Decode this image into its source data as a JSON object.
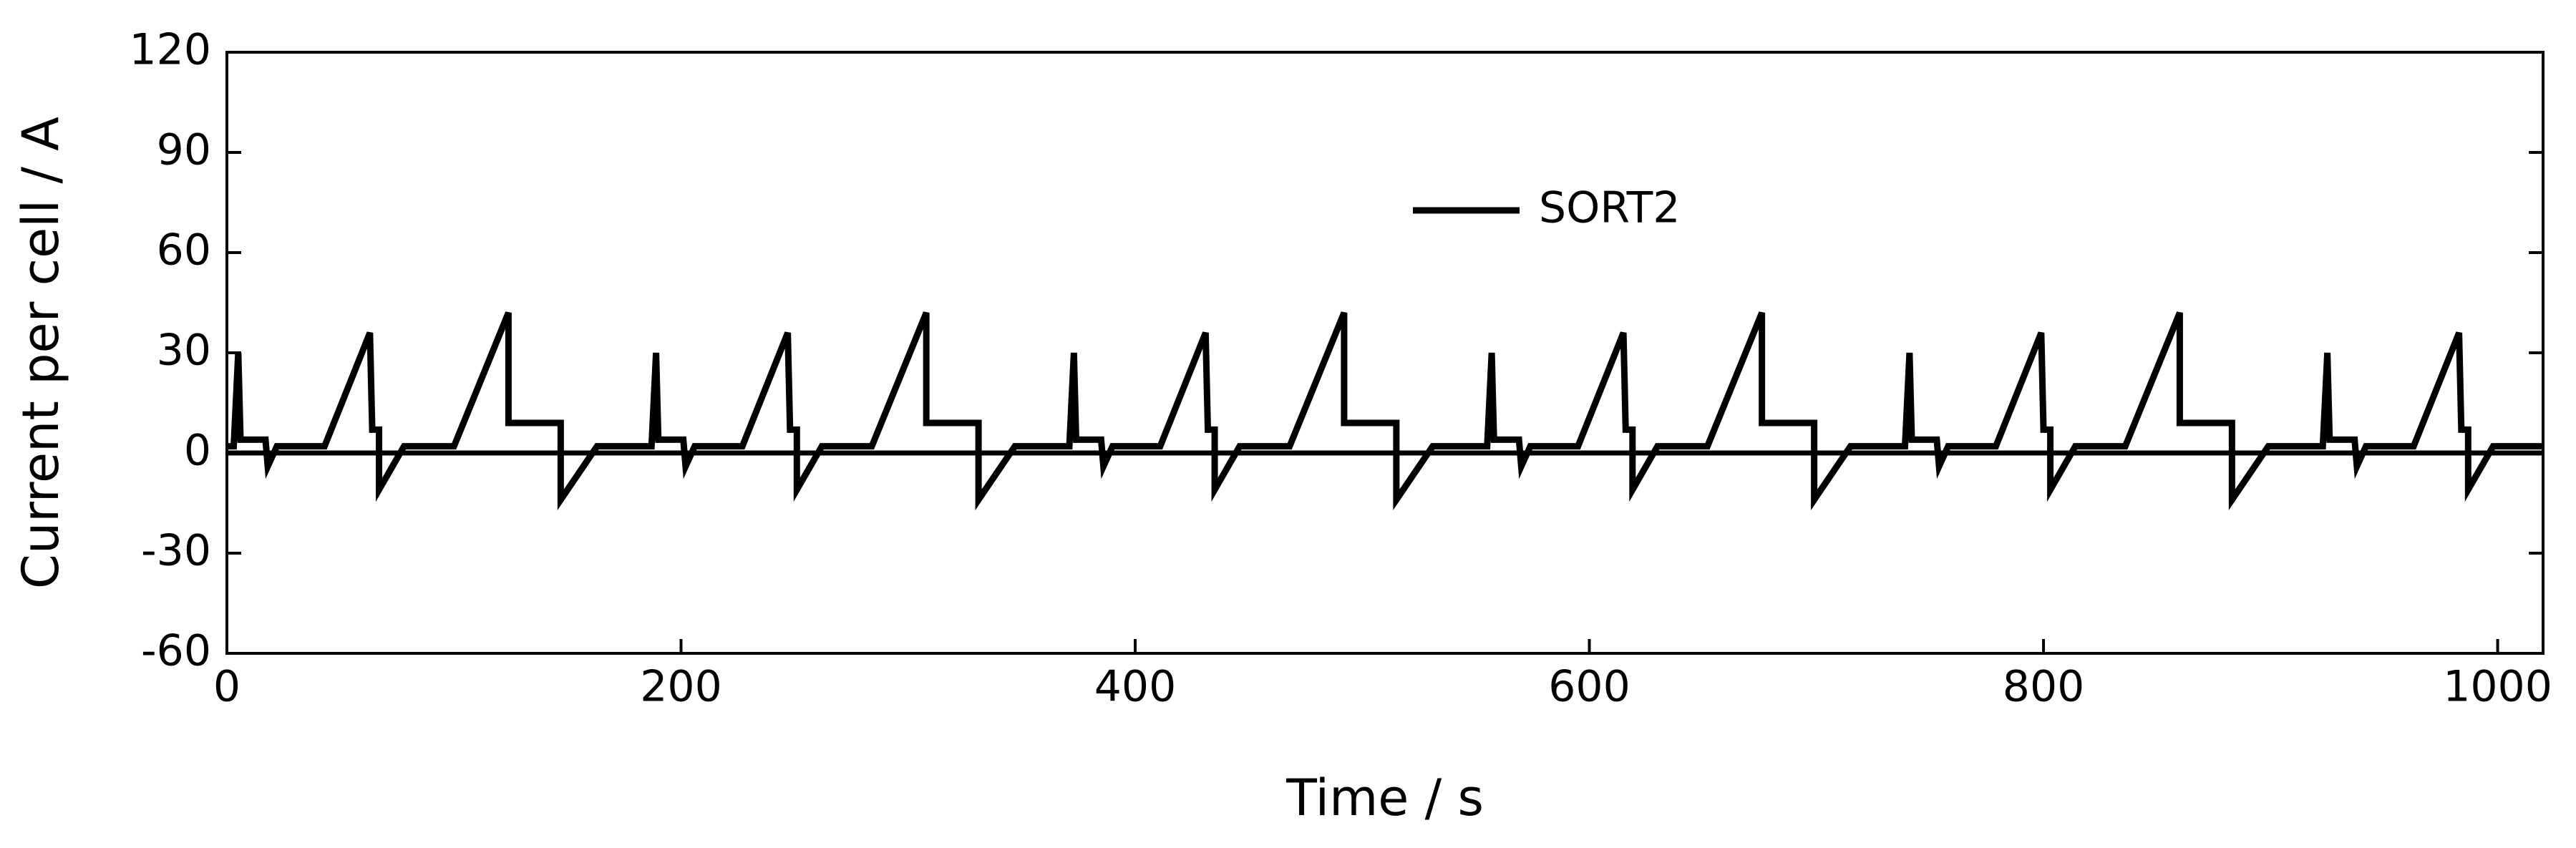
{
  "chart_data": {
    "type": "line",
    "xlabel": "Time / s",
    "ylabel": "Current per cell / A",
    "xlim": [
      0,
      1020
    ],
    "ylim": [
      -60,
      120
    ],
    "xticks": [
      0,
      200,
      400,
      600,
      800,
      1000
    ],
    "yticks": [
      -60,
      -30,
      0,
      30,
      60,
      90,
      120
    ],
    "legend": "top",
    "series": [
      {
        "name": "SORT2",
        "color": "#000000",
        "x": [
          0,
          3,
          5,
          6,
          17,
          18,
          22,
          43,
          63,
          64,
          67,
          67,
          78,
          100,
          124,
          124,
          147,
          147,
          163,
          187,
          189,
          190,
          201,
          202,
          206,
          227,
          247,
          248,
          251,
          251,
          262,
          284,
          308,
          308,
          331,
          331,
          347,
          371,
          373,
          374,
          385,
          386,
          390,
          411,
          431,
          432,
          435,
          435,
          446,
          468,
          492,
          492,
          515,
          515,
          531,
          555,
          557,
          558,
          569,
          570,
          574,
          595,
          615,
          616,
          619,
          619,
          630,
          652,
          676,
          676,
          699,
          699,
          715,
          739,
          741,
          742,
          753,
          754,
          758,
          779,
          799,
          800,
          803,
          803,
          814,
          836,
          860,
          860,
          883,
          883,
          899,
          923,
          925,
          926,
          937,
          938,
          942,
          963,
          983,
          984,
          987,
          987,
          998,
          1020
        ],
        "values": [
          2,
          2,
          30,
          4,
          4,
          -4,
          2,
          2,
          36,
          7,
          7,
          -11,
          2,
          2,
          42,
          9,
          9,
          -14,
          2,
          2,
          30,
          4,
          4,
          -4,
          2,
          2,
          36,
          7,
          7,
          -11,
          2,
          2,
          42,
          9,
          9,
          -14,
          2,
          2,
          30,
          4,
          4,
          -4,
          2,
          2,
          36,
          7,
          7,
          -11,
          2,
          2,
          42,
          9,
          9,
          -14,
          2,
          2,
          30,
          4,
          4,
          -4,
          2,
          2,
          36,
          7,
          7,
          -11,
          2,
          2,
          42,
          9,
          9,
          -14,
          2,
          2,
          30,
          4,
          4,
          -4,
          2,
          2,
          36,
          7,
          7,
          -11,
          2,
          2,
          42,
          9,
          9,
          -14,
          2,
          2,
          30,
          4,
          4,
          -4,
          2,
          2,
          36,
          7,
          7,
          -11,
          2,
          2
        ]
      }
    ]
  }
}
